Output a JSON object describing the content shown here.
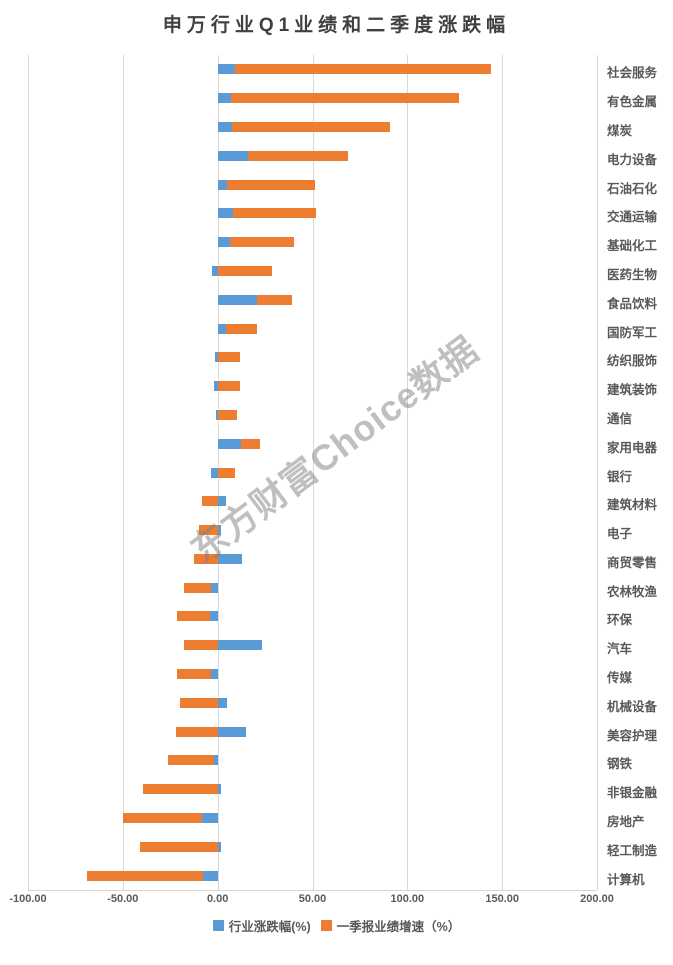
{
  "title": "申万行业Q1业绩和二季度涨跌幅",
  "watermark": "东方财富Choice数据",
  "colors": {
    "series_blue": "#5B9BD5",
    "series_orange": "#ED7D31",
    "gridline": "#D9D9D9",
    "tick_text": "#595959",
    "title_text": "#404040"
  },
  "chart_data": {
    "type": "bar",
    "orientation": "horizontal",
    "title": "申万行业Q1业绩和二季度涨跌幅",
    "xlabel": "",
    "ylabel": "",
    "xlim": [
      -100,
      200
    ],
    "grid": true,
    "legend_position": "bottom",
    "bar_overlap": "full-overlap, blue drawn in front of orange, both anchored at 0",
    "x_ticks": [
      "-100.00",
      "-50.00",
      "0.00",
      "50.00",
      "100.00",
      "150.00",
      "200.00"
    ],
    "x_tick_values": [
      -100,
      -50,
      0,
      50,
      100,
      150,
      200
    ],
    "categories": [
      "社会服务",
      "有色金属",
      "煤炭",
      "电力设备",
      "石油石化",
      "交通运输",
      "基础化工",
      "医药生物",
      "食品饮料",
      "国防军工",
      "纺织服饰",
      "建筑装饰",
      "通信",
      "家用电器",
      "银行",
      "建筑材料",
      "电子",
      "商贸零售",
      "农林牧渔",
      "环保",
      "汽车",
      "传媒",
      "机械设备",
      "美容护理",
      "钢铁",
      "非银金融",
      "房地产",
      "轻工制造",
      "计算机"
    ],
    "series": [
      {
        "name": "行业涨跌幅(%)",
        "color": "#5B9BD5",
        "values": [
          9,
          7,
          7.5,
          16,
          5,
          8,
          6.5,
          -3,
          21,
          4.5,
          -1.5,
          -2,
          -1,
          12.5,
          -3.5,
          4.5,
          1.5,
          13,
          -3.5,
          -4,
          23.5,
          -3.5,
          5,
          15,
          -2,
          1.5,
          -8,
          1.5,
          -7.5
        ]
      },
      {
        "name": "一季报业绩增速（%）",
        "color": "#ED7D31",
        "values": [
          144,
          127,
          91,
          68.5,
          51.5,
          52,
          40.5,
          28.5,
          39,
          21,
          12,
          12,
          10,
          22.5,
          9,
          -8,
          -10,
          -12.5,
          -17.5,
          -21.5,
          -17.5,
          -21.5,
          -20,
          -22,
          -26,
          -39.5,
          -50,
          -41,
          -69
        ]
      }
    ]
  }
}
